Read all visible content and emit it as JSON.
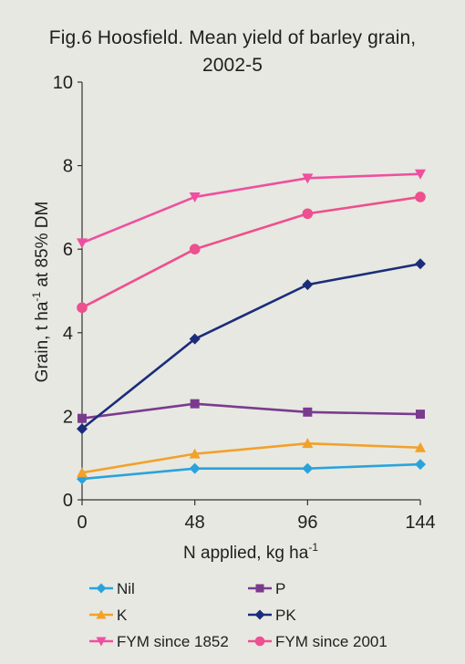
{
  "chart_data": {
    "type": "line",
    "title_line1": "Fig.6  Hoosfield. Mean yield of barley grain,",
    "title_line2": "2002-5",
    "xlabel": "N applied, kg ha",
    "xlabel_sup": "-1",
    "ylabel": "Grain, t ha",
    "ylabel_sup": "-1",
    "ylabel_suffix": " at 85% DM",
    "x": [
      0,
      48,
      96,
      144
    ],
    "xticks": [
      "0",
      "48",
      "96",
      "144"
    ],
    "yticks": [
      "0",
      "2",
      "4",
      "6",
      "8",
      "10"
    ],
    "ylim": [
      0,
      10
    ],
    "xlim": [
      0,
      144
    ],
    "grid": false,
    "legend_position": "bottom",
    "series": [
      {
        "name": "Nil",
        "values": [
          0.5,
          0.75,
          0.75,
          0.85
        ],
        "color": "#2aa3dc",
        "marker": "diamond"
      },
      {
        "name": "P",
        "values": [
          1.95,
          2.3,
          2.1,
          2.05
        ],
        "color": "#7a3b8f",
        "marker": "square"
      },
      {
        "name": "K",
        "values": [
          0.65,
          1.1,
          1.35,
          1.25
        ],
        "color": "#f2a12a",
        "marker": "triangle"
      },
      {
        "name": "PK",
        "values": [
          1.7,
          3.85,
          5.15,
          5.65
        ],
        "color": "#1b2d7a",
        "marker": "diamond"
      },
      {
        "name": "FYM since 1852",
        "values": [
          6.15,
          7.25,
          7.7,
          7.8
        ],
        "color": "#ee4fa0",
        "marker": "triangle-down"
      },
      {
        "name": "FYM since 2001",
        "values": [
          4.6,
          6.0,
          6.85,
          7.25
        ],
        "color": "#ee4f8e",
        "marker": "circle"
      }
    ]
  }
}
